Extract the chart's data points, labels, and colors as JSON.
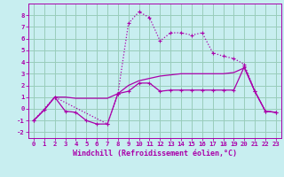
{
  "xlabel": "Windchill (Refroidissement éolien,°C)",
  "bg_color": "#c8eef0",
  "grid_color": "#99ccbb",
  "line_color": "#aa00aa",
  "xlim": [
    -0.5,
    23.5
  ],
  "ylim": [
    -2.5,
    9.0
  ],
  "yticks": [
    -2,
    -1,
    0,
    1,
    2,
    3,
    4,
    5,
    6,
    7,
    8
  ],
  "xticks": [
    0,
    1,
    2,
    3,
    4,
    5,
    6,
    7,
    8,
    9,
    10,
    11,
    12,
    13,
    14,
    15,
    16,
    17,
    18,
    19,
    20,
    21,
    22,
    23
  ],
  "series_dotted_x": [
    0,
    2,
    7,
    8,
    9,
    10,
    11,
    12,
    13,
    14,
    15,
    16,
    17,
    18,
    19,
    20,
    21,
    22,
    23
  ],
  "series_dotted_y": [
    -1.0,
    1.0,
    -1.3,
    1.3,
    7.3,
    8.3,
    7.8,
    5.8,
    6.5,
    6.5,
    6.3,
    6.5,
    4.8,
    4.5,
    4.3,
    3.8,
    1.5,
    -0.2,
    -0.3
  ],
  "series_solid_x": [
    0,
    1,
    2,
    3,
    4,
    5,
    6,
    7,
    8,
    9,
    10,
    11,
    12,
    13,
    14,
    15,
    16,
    17,
    18,
    19,
    20,
    21,
    22,
    23
  ],
  "series_solid_y": [
    -1.0,
    -0.1,
    1.0,
    1.0,
    0.9,
    0.9,
    0.9,
    0.9,
    1.3,
    2.0,
    2.4,
    2.6,
    2.8,
    2.9,
    3.0,
    3.0,
    3.0,
    3.0,
    3.0,
    3.1,
    3.5,
    1.5,
    -0.2,
    -0.3
  ],
  "series_marker_x": [
    0,
    1,
    2,
    3,
    4,
    5,
    6,
    7,
    8,
    9,
    10,
    11,
    12,
    13,
    14,
    15,
    16,
    17,
    18,
    19,
    20,
    21,
    22,
    23
  ],
  "series_marker_y": [
    -1.0,
    -0.1,
    1.0,
    -0.2,
    -0.3,
    -1.0,
    -1.3,
    -1.3,
    1.3,
    1.5,
    2.2,
    2.2,
    1.5,
    1.6,
    1.6,
    1.6,
    1.6,
    1.6,
    1.6,
    1.6,
    3.6,
    1.5,
    -0.2,
    -0.3
  ],
  "tick_fontsize": 5.2,
  "xlabel_fontsize": 6.0
}
